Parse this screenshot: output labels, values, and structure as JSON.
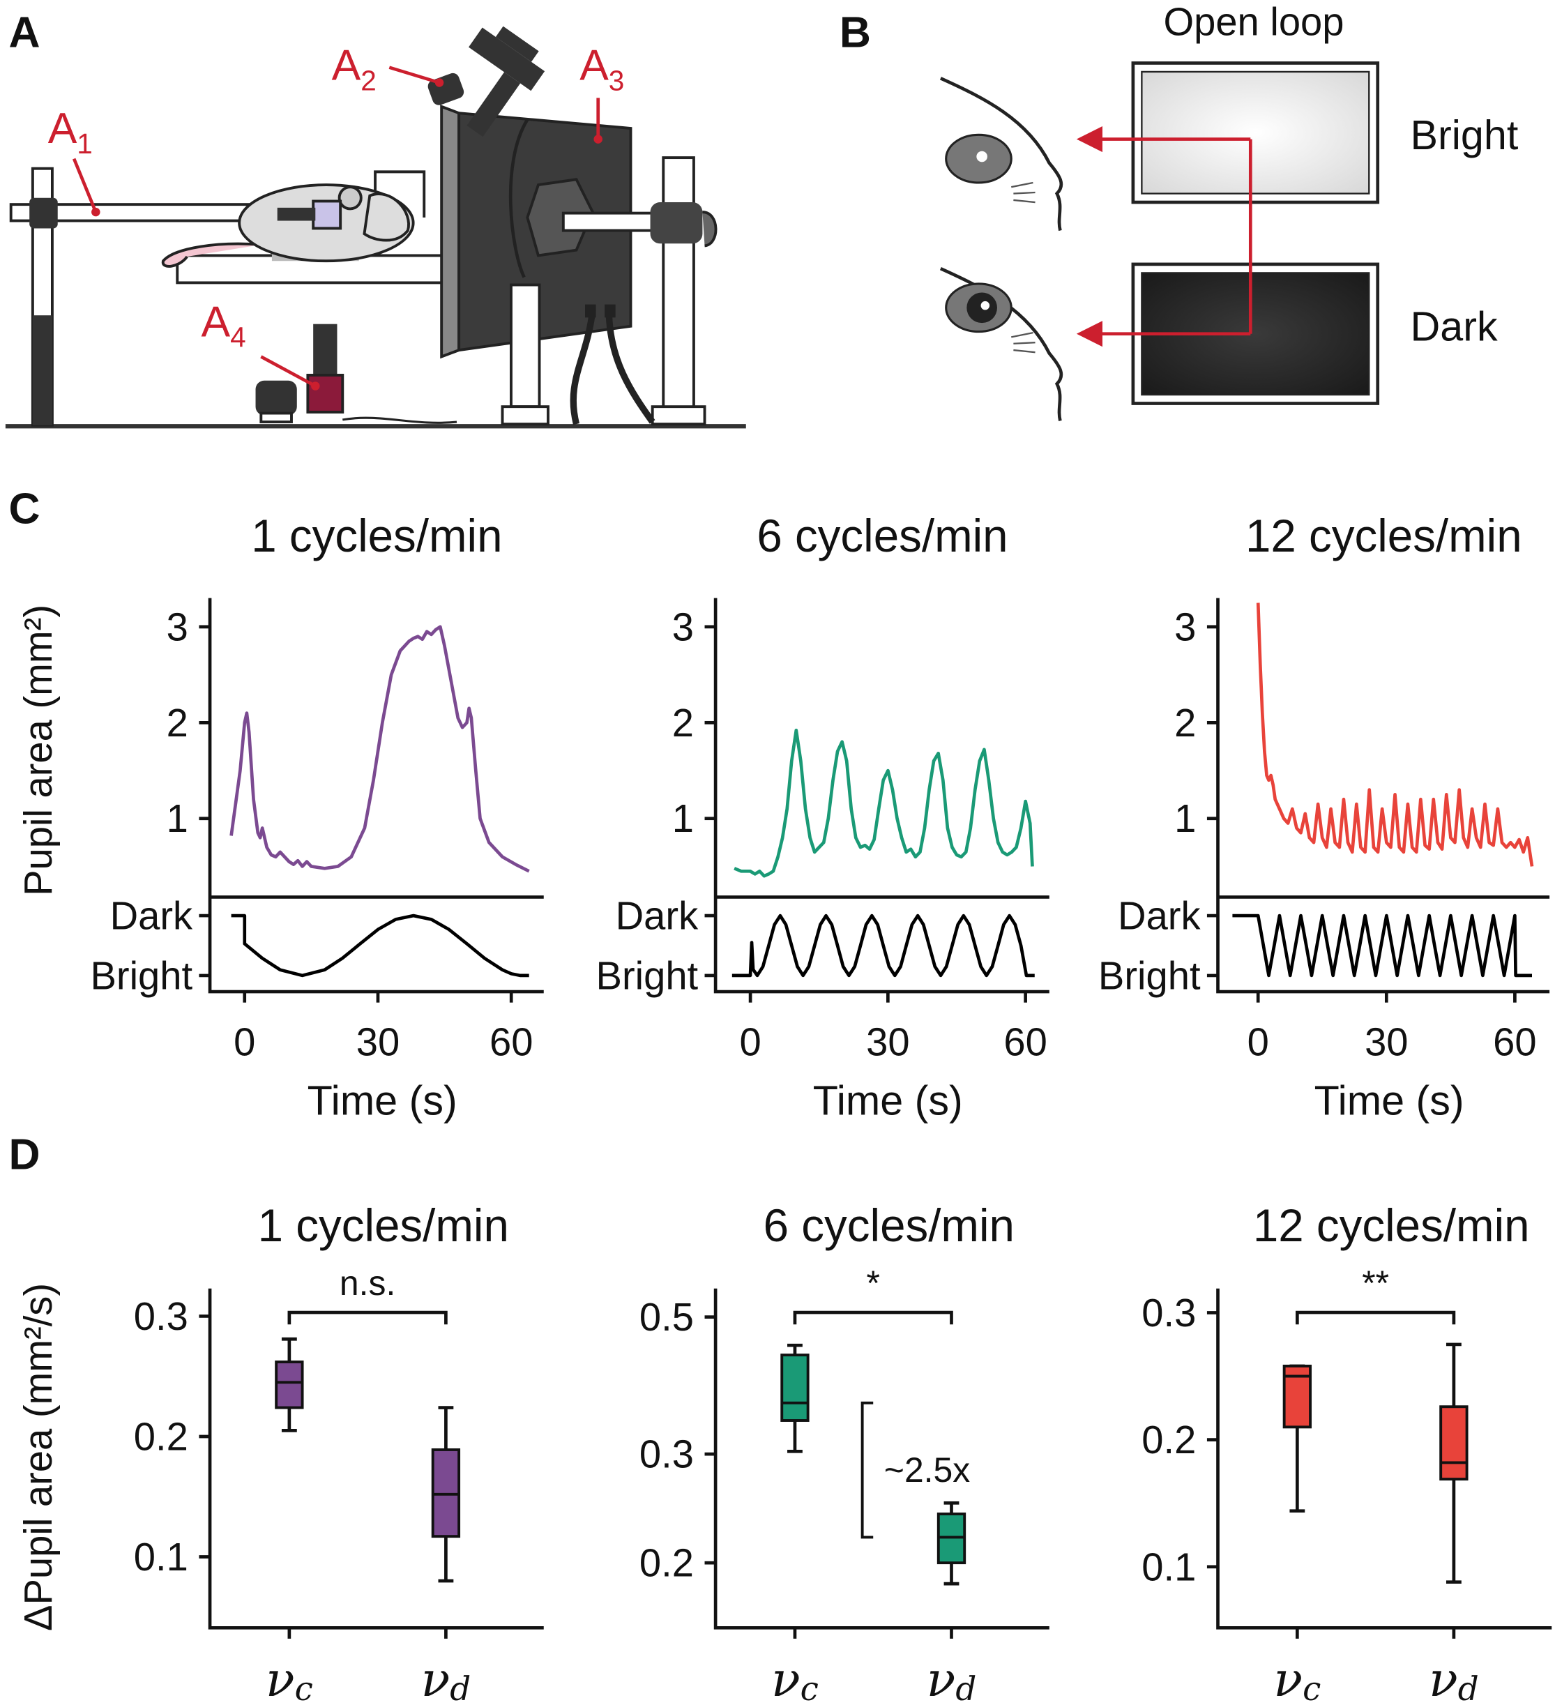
{
  "panel_labels": [
    "A",
    "B",
    "C",
    "D"
  ],
  "setup_labels": [
    {
      "letter": "A",
      "index": "1"
    },
    {
      "letter": "A",
      "index": "2"
    },
    {
      "letter": "A",
      "index": "3"
    },
    {
      "letter": "A",
      "index": "4"
    }
  ],
  "open_loop": {
    "title": "Open loop",
    "bright": "Bright",
    "dark": "Dark"
  },
  "chart_data": [
    {
      "type": "line",
      "title": "1 cycles/min",
      "ylabel": "Pupil area (mm²)",
      "xlabel": "Time (s)",
      "xlim": [
        -7.8,
        67.3
      ],
      "xticks": [
        0,
        30,
        60
      ],
      "ylim": [
        0.18,
        3.3
      ],
      "yticks": [
        1,
        2,
        3
      ],
      "y2lim": [
        -0.27,
        1.31
      ],
      "y2ticks": [
        {
          "value": 1,
          "label": "Dark"
        },
        {
          "value": 0,
          "label": "Bright"
        }
      ],
      "series": [
        {
          "color": "#7b4a91",
          "x": [
            -3,
            -1,
            0,
            0.5,
            1,
            2,
            3,
            3.5,
            4,
            5,
            6,
            7,
            8,
            9,
            10,
            11,
            12,
            13,
            14,
            15,
            18,
            21,
            24,
            27,
            29,
            31,
            33,
            35,
            37,
            38,
            39,
            40,
            41,
            42,
            43,
            44,
            45,
            46,
            47,
            48,
            49,
            50,
            50.5,
            51,
            52,
            53,
            55,
            58,
            61,
            64
          ],
          "values": [
            0.82,
            1.5,
            2.0,
            2.1,
            1.9,
            1.2,
            0.85,
            0.8,
            0.9,
            0.7,
            0.62,
            0.6,
            0.65,
            0.6,
            0.55,
            0.52,
            0.56,
            0.5,
            0.55,
            0.5,
            0.48,
            0.5,
            0.6,
            0.9,
            1.4,
            2.0,
            2.5,
            2.75,
            2.85,
            2.88,
            2.9,
            2.87,
            2.95,
            2.92,
            2.97,
            3.0,
            2.8,
            2.55,
            2.3,
            2.05,
            1.95,
            2.0,
            2.15,
            2.05,
            1.5,
            1.0,
            0.75,
            0.6,
            0.52,
            0.45
          ]
        },
        {
          "color": "#000000",
          "axis": "y2",
          "x": [
            -3,
            0,
            0,
            4,
            8,
            13,
            18,
            22,
            26,
            30,
            34,
            38,
            42,
            46,
            50,
            54,
            58,
            60,
            62,
            64
          ],
          "values": [
            1,
            1,
            0.53,
            0.287,
            0.095,
            0,
            0.095,
            0.287,
            0.531,
            0.768,
            0.938,
            1,
            0.938,
            0.768,
            0.531,
            0.287,
            0.095,
            0.03,
            0,
            0
          ]
        }
      ]
    },
    {
      "type": "line",
      "title": "6 cycles/min",
      "xlabel": "Time (s)",
      "xlim": [
        -7.6,
        65.2
      ],
      "xticks": [
        0,
        30,
        60
      ],
      "ylim": [
        0.18,
        3.3
      ],
      "yticks": [
        1,
        2,
        3
      ],
      "y2lim": [
        -0.27,
        1.31
      ],
      "y2ticks": [
        {
          "value": 1,
          "label": "Dark"
        },
        {
          "value": 0,
          "label": "Bright"
        }
      ],
      "series": [
        {
          "color": "#1a9a76",
          "x": [
            -3.5,
            -2,
            0,
            1,
            2,
            3,
            4,
            5,
            6,
            7,
            8,
            9,
            10,
            11,
            12,
            13,
            14,
            15,
            16,
            17,
            18,
            19,
            20,
            21,
            22,
            23,
            24,
            25,
            26,
            27,
            28,
            29,
            30,
            31,
            32,
            33,
            34,
            35,
            36,
            37,
            38,
            39,
            40,
            41,
            42,
            43,
            44,
            45,
            46,
            47,
            48,
            49,
            50,
            51,
            52,
            53,
            54,
            55,
            56,
            57,
            58,
            59,
            60,
            61,
            61.5
          ],
          "values": [
            0.48,
            0.45,
            0.45,
            0.42,
            0.45,
            0.4,
            0.42,
            0.45,
            0.6,
            0.8,
            1.1,
            1.6,
            1.92,
            1.6,
            1.1,
            0.8,
            0.65,
            0.7,
            0.75,
            1.0,
            1.4,
            1.7,
            1.8,
            1.6,
            1.1,
            0.8,
            0.7,
            0.72,
            0.68,
            0.78,
            1.1,
            1.4,
            1.5,
            1.3,
            1.0,
            0.8,
            0.65,
            0.68,
            0.6,
            0.65,
            0.9,
            1.3,
            1.6,
            1.68,
            1.4,
            0.9,
            0.7,
            0.62,
            0.6,
            0.65,
            0.9,
            1.3,
            1.6,
            1.72,
            1.4,
            1.0,
            0.75,
            0.65,
            0.62,
            0.65,
            0.7,
            0.9,
            1.18,
            0.95,
            0.5
          ]
        },
        {
          "color": "#000000",
          "axis": "y2",
          "x": [
            -4,
            0,
            0.3,
            0.6,
            1.5,
            2.75,
            4,
            5.25,
            6.5,
            7.75,
            9,
            10.25,
            11.5,
            12.75,
            14,
            15.25,
            16.5,
            17.75,
            19,
            20.25,
            21.5,
            22.75,
            24,
            25.25,
            26.5,
            27.75,
            29,
            30.25,
            31.5,
            32.75,
            34,
            35.25,
            36.5,
            37.75,
            39,
            40.25,
            41.5,
            42.75,
            44,
            45.25,
            46.5,
            47.75,
            49,
            50.25,
            51.5,
            52.75,
            54,
            55.25,
            56.5,
            57.75,
            59,
            60.2,
            62
          ],
          "values": [
            0,
            0,
            0.55,
            0.1,
            0,
            0.15,
            0.5,
            0.85,
            1,
            0.85,
            0.5,
            0.15,
            0,
            0.15,
            0.5,
            0.85,
            1,
            0.85,
            0.5,
            0.15,
            0,
            0.15,
            0.5,
            0.85,
            1,
            0.85,
            0.5,
            0.15,
            0,
            0.15,
            0.5,
            0.85,
            1,
            0.85,
            0.5,
            0.15,
            0,
            0.15,
            0.5,
            0.85,
            1,
            0.85,
            0.5,
            0.15,
            0,
            0.15,
            0.5,
            0.85,
            1,
            0.85,
            0.5,
            0,
            0
          ]
        }
      ]
    },
    {
      "type": "line",
      "title": "12 cycles/min",
      "xlabel": "Time (s)",
      "xlim": [
        -9.4,
        68.1
      ],
      "xticks": [
        0,
        30,
        60
      ],
      "ylim": [
        0.18,
        3.3
      ],
      "yticks": [
        1,
        2,
        3
      ],
      "y2lim": [
        -0.27,
        1.31
      ],
      "y2ticks": [
        {
          "value": 1,
          "label": "Dark"
        },
        {
          "value": 0,
          "label": "Bright"
        }
      ],
      "series": [
        {
          "color": "#e8433a",
          "x": [
            0,
            0.5,
            1,
            1.5,
            2,
            2.5,
            3,
            3.5,
            4,
            5,
            6,
            7,
            8,
            9,
            10,
            11,
            12,
            13,
            14,
            15,
            16,
            17,
            18,
            19,
            20,
            21,
            22,
            23,
            24,
            25,
            26,
            27,
            28,
            29,
            30,
            31,
            32,
            33,
            34,
            35,
            36,
            37,
            38,
            39,
            40,
            41,
            42,
            43,
            44,
            45,
            46,
            47,
            48,
            49,
            50,
            51,
            52,
            53,
            54,
            55,
            56,
            57,
            58,
            59,
            60,
            61,
            62,
            63,
            64
          ],
          "values": [
            3.25,
            2.6,
            2.1,
            1.7,
            1.45,
            1.4,
            1.45,
            1.35,
            1.2,
            1.1,
            1.0,
            0.95,
            1.1,
            0.9,
            0.85,
            1.05,
            0.8,
            0.75,
            1.15,
            0.8,
            0.7,
            1.1,
            0.75,
            0.7,
            1.2,
            0.75,
            0.65,
            1.15,
            0.7,
            0.65,
            1.3,
            0.7,
            0.65,
            1.1,
            0.75,
            0.7,
            1.25,
            0.7,
            0.65,
            1.15,
            0.7,
            0.65,
            1.2,
            0.72,
            0.68,
            1.2,
            0.75,
            0.68,
            1.25,
            0.8,
            0.75,
            1.3,
            0.8,
            0.7,
            1.1,
            0.8,
            0.7,
            1.15,
            0.75,
            0.72,
            1.1,
            0.75,
            0.7,
            0.75,
            0.7,
            0.78,
            0.65,
            0.8,
            0.5
          ]
        },
        {
          "color": "#000000",
          "axis": "y2",
          "x": [
            -6,
            0,
            1.25,
            2.5,
            3.75,
            5,
            6.25,
            7.5,
            8.75,
            10,
            11.25,
            12.5,
            13.75,
            15,
            16.25,
            17.5,
            18.75,
            20,
            21.25,
            22.5,
            23.75,
            25,
            26.25,
            27.5,
            28.75,
            30,
            31.25,
            32.5,
            33.75,
            35,
            36.25,
            37.5,
            38.75,
            40,
            41.25,
            42.5,
            43.75,
            45,
            46.25,
            47.5,
            48.75,
            50,
            51.25,
            52.5,
            53.75,
            55,
            56.25,
            57.5,
            58.75,
            60,
            60.2,
            64
          ],
          "values": [
            1,
            1,
            0.5,
            0,
            0.5,
            1,
            0.5,
            0,
            0.5,
            1,
            0.5,
            0,
            0.5,
            1,
            0.5,
            0,
            0.5,
            1,
            0.5,
            0,
            0.5,
            1,
            0.5,
            0,
            0.5,
            1,
            0.5,
            0,
            0.5,
            1,
            0.5,
            0,
            0.5,
            1,
            0.5,
            0,
            0.5,
            1,
            0.5,
            0,
            0.5,
            1,
            0.5,
            0,
            0.5,
            1,
            0.5,
            0,
            0.5,
            1,
            0,
            0
          ]
        }
      ]
    },
    {
      "type": "box",
      "title": "1 cycles/min",
      "ylabel": "ΔPupil area (mm²/s)",
      "color": "#7b4a91",
      "categories": [
        {
          "symbol": "ν",
          "sub": "c"
        },
        {
          "symbol": "ν",
          "sub": "d"
        }
      ],
      "ylim": [
        0.041,
        0.323
      ],
      "yticks": [
        0.1,
        0.2,
        0.3
      ],
      "significance": "n.s.",
      "values": [
        {
          "low": 0.205,
          "q1": 0.224,
          "median": 0.245,
          "q3": 0.262,
          "high": 0.281
        },
        {
          "low": 0.08,
          "q1": 0.117,
          "median": 0.152,
          "q3": 0.189,
          "high": 0.224
        }
      ]
    },
    {
      "type": "box",
      "title": "6 cycles/min",
      "color": "#1a9a76",
      "log": true,
      "categories": [
        {
          "symbol": "ν",
          "sub": "c"
        },
        {
          "symbol": "ν",
          "sub": "d"
        }
      ],
      "ylim": [
        0.157,
        0.556
      ],
      "yticks": [
        0.2,
        0.3,
        0.5
      ],
      "significance": "*",
      "fold_change": "~2.5x",
      "values": [
        {
          "low": 0.303,
          "q1": 0.34,
          "median": 0.363,
          "q3": 0.434,
          "high": 0.45
        },
        {
          "low": 0.185,
          "q1": 0.2,
          "median": 0.22,
          "q3": 0.24,
          "high": 0.25
        }
      ]
    },
    {
      "type": "box",
      "title": "12 cycles/min",
      "color": "#e8433a",
      "categories": [
        {
          "symbol": "ν",
          "sub": "c"
        },
        {
          "symbol": "ν",
          "sub": "d"
        }
      ],
      "ylim": [
        0.052,
        0.319
      ],
      "yticks": [
        0.1,
        0.2,
        0.3
      ],
      "significance": "**",
      "values": [
        {
          "low": 0.144,
          "q1": 0.21,
          "median": 0.25,
          "q3": 0.258,
          "high": 0.258
        },
        {
          "low": 0.088,
          "q1": 0.169,
          "median": 0.182,
          "q3": 0.226,
          "high": 0.275
        }
      ]
    }
  ]
}
